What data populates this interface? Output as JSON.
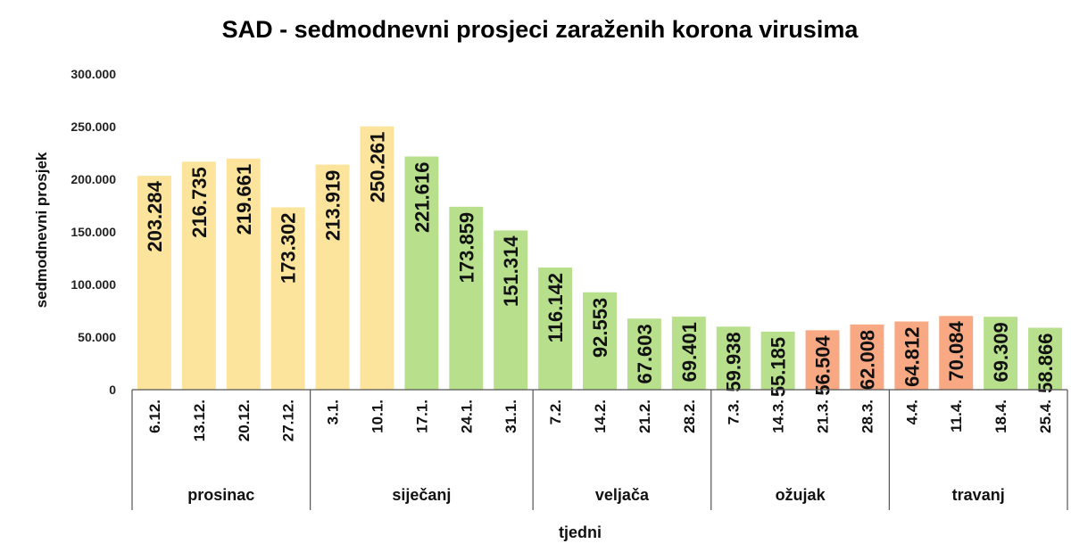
{
  "chart_data": {
    "type": "bar",
    "title": "SAD - sedmodnevni prosjeci zaraženih korona virusima",
    "xlabel": "tjedni",
    "ylabel": "sedmodnevni prosjek",
    "ylim": [
      0,
      300000
    ],
    "yticks": [
      "0",
      "50.000",
      "100.000",
      "150.000",
      "200.000",
      "250.000",
      "300.000"
    ],
    "yticks_values": [
      0,
      50000,
      100000,
      150000,
      200000,
      250000,
      300000
    ],
    "grid": false,
    "legend": "none",
    "colors": {
      "yellow": "#FCE49C",
      "green": "#B8E08C",
      "orange": "#F8A882"
    },
    "groups": [
      {
        "label": "prosinac",
        "count": 4
      },
      {
        "label": "siječanj",
        "count": 5
      },
      {
        "label": "veljača",
        "count": 4
      },
      {
        "label": "ožujak",
        "count": 4
      },
      {
        "label": "travanj",
        "count": 4
      }
    ],
    "categories": [
      "6.12.",
      "13.12.",
      "20.12.",
      "27.12.",
      "3.1.",
      "10.1.",
      "17.1.",
      "24.1.",
      "31.1.",
      "7.2.",
      "14.2.",
      "21.2.",
      "28.2.",
      "7.3.",
      "14.3.",
      "21.3.",
      "28.3.",
      "4.4.",
      "11.4.",
      "18.4.",
      "25.4."
    ],
    "values": [
      203284,
      216735,
      219661,
      173302,
      213919,
      250261,
      221616,
      173859,
      151314,
      116142,
      92553,
      67603,
      69401,
      59938,
      55185,
      56504,
      62008,
      64812,
      70084,
      69309,
      58866
    ],
    "value_labels": [
      "203.284",
      "216.735",
      "219.661",
      "173.302",
      "213.919",
      "250.261",
      "221.616",
      "173.859",
      "151.314",
      "116.142",
      "92.553",
      "67.603",
      "69.401",
      "59.938",
      "55.185",
      "56.504",
      "62.008",
      "64.812",
      "70.084",
      "69.309",
      "58.866"
    ],
    "bar_colors": [
      "yellow",
      "yellow",
      "yellow",
      "yellow",
      "yellow",
      "yellow",
      "green",
      "green",
      "green",
      "green",
      "green",
      "green",
      "green",
      "green",
      "green",
      "orange",
      "orange",
      "orange",
      "orange",
      "green",
      "green"
    ]
  }
}
